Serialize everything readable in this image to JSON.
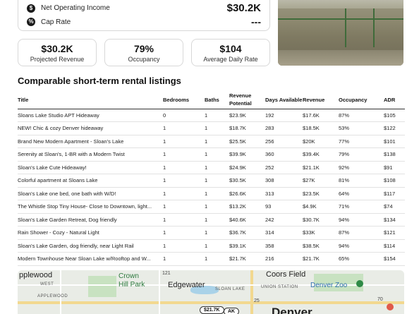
{
  "metrics": {
    "noi_label": "Net Operating Income",
    "noi_value": "$30.2K",
    "cap_label": "Cap Rate",
    "cap_value": "---"
  },
  "kpis": [
    {
      "value": "$30.2K",
      "label": "Projected Revenue"
    },
    {
      "value": "79%",
      "label": "Occupancy"
    },
    {
      "value": "$104",
      "label": "Average Daily Rate"
    }
  ],
  "section_title": "Comparable short-term rental listings",
  "table": {
    "headers": [
      "Title",
      "Bedrooms",
      "Baths",
      "Revenue Potential",
      "Days Available",
      "Revenue",
      "Occupancy",
      "ADR"
    ],
    "rows": [
      [
        "Sloans Lake Studio APT Hideaway",
        "0",
        "1",
        "$23.9K",
        "192",
        "$17.6K",
        "87%",
        "$105"
      ],
      [
        "NEW! Chic & cozy Denver hideaway",
        "1",
        "1",
        "$18.7K",
        "283",
        "$18.5K",
        "53%",
        "$122"
      ],
      [
        "Brand New Modern Apartment - Sloan's Lake",
        "1",
        "1",
        "$25.5K",
        "256",
        "$20K",
        "77%",
        "$101"
      ],
      [
        "Serenity at Sloan's, 1-BR with a Modern Twist",
        "1",
        "1",
        "$39.9K",
        "360",
        "$39.4K",
        "79%",
        "$138"
      ],
      [
        "Sloan's Lake Cute Hideaway!",
        "1",
        "1",
        "$24.9K",
        "252",
        "$21.1K",
        "92%",
        "$91"
      ],
      [
        "Colorful apartment at Sloans Lake",
        "1",
        "1",
        "$30.5K",
        "308",
        "$27K",
        "81%",
        "$108"
      ],
      [
        "Sloan's Lake one bed, one bath with W/D!",
        "1",
        "1",
        "$26.6K",
        "313",
        "$23.5K",
        "64%",
        "$117"
      ],
      [
        "The Whistle Stop Tiny House- Close to Downtown, light...",
        "1",
        "1",
        "$13.2K",
        "93",
        "$4.9K",
        "71%",
        "$74"
      ],
      [
        "Sloan's Lake Garden Retreat, Dog friendly",
        "1",
        "1",
        "$40.6K",
        "242",
        "$30.7K",
        "94%",
        "$134"
      ],
      [
        "Rain Shower - Cozy - Natural Light",
        "1",
        "1",
        "$36.7K",
        "314",
        "$33K",
        "87%",
        "$121"
      ],
      [
        "Sloan's Lake Garden, dog friendly, near Light Rail",
        "1",
        "1",
        "$39.1K",
        "358",
        "$38.5K",
        "94%",
        "$114"
      ],
      [
        "Modern Townhouse Near Sloan Lake w/Rooftop and W...",
        "1",
        "1",
        "$21.7K",
        "216",
        "$21.7K",
        "65%",
        "$154"
      ]
    ]
  },
  "map": {
    "labels": {
      "applewood_top": "pplewood",
      "west": "WEST",
      "applewood": "APPLEWOOD",
      "crown1": "Crown",
      "crown2": "Hill Park",
      "edgewater": "Edgewater",
      "sloan_lake": "SLOAN LAKE",
      "coors": "Coors Field",
      "union": "UNION STATION",
      "zoo": "Denver Zoo",
      "denver": "Denver",
      "hwy_121": "121",
      "hwy_25": "25",
      "hwy_70": "70"
    },
    "pins": [
      "$21.7K",
      "AK"
    ]
  }
}
